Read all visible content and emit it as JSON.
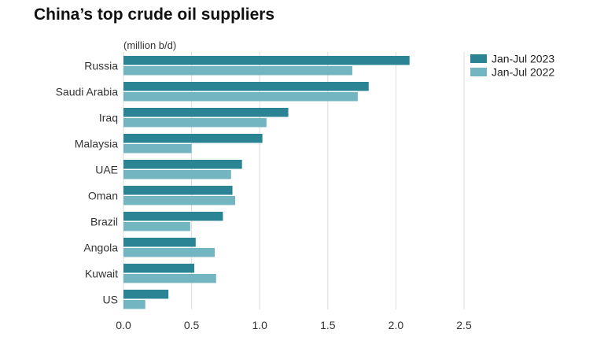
{
  "chart_data": {
    "type": "bar",
    "orientation": "horizontal",
    "title": "China’s top crude oil suppliers",
    "unit_label": "(million b/d)",
    "categories": [
      "Russia",
      "Saudi Arabia",
      "Iraq",
      "Malaysia",
      "UAE",
      "Oman",
      "Brazil",
      "Angola",
      "Kuwait",
      "US"
    ],
    "series": [
      {
        "name": "Jan-Jul 2023",
        "color": "#2a8494",
        "values": [
          2.1,
          1.8,
          1.21,
          1.02,
          0.87,
          0.8,
          0.73,
          0.53,
          0.52,
          0.33
        ]
      },
      {
        "name": "Jan-Jul 2022",
        "color": "#74b5c2",
        "values": [
          1.68,
          1.72,
          1.05,
          0.5,
          0.79,
          0.82,
          0.49,
          0.67,
          0.68,
          0.16
        ]
      }
    ],
    "xlim": [
      0,
      2.5
    ],
    "xticks": [
      0,
      0.5,
      1,
      1.5,
      2,
      2.5
    ],
    "xtick_labels": [
      "0.0",
      "0.5",
      "1.0",
      "1.5",
      "2.0",
      "2.5"
    ],
    "grid": "vertical",
    "legend": "top-right"
  }
}
